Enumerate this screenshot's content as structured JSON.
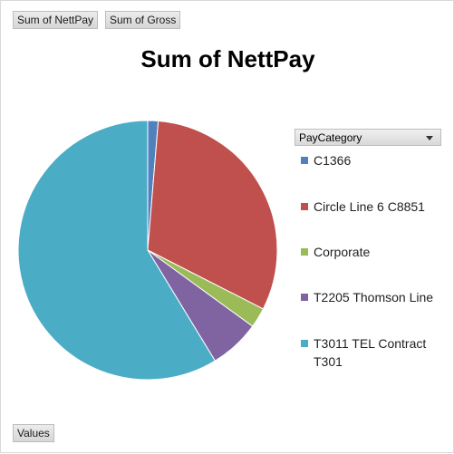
{
  "field_buttons": {
    "values_1": "Sum of NettPay",
    "values_2": "Sum of Gross",
    "values_area": "Values"
  },
  "legend_filter": {
    "label": "PayCategory",
    "icon": "dropdown-arrow-icon"
  },
  "chart_data": {
    "type": "pie",
    "title": "Sum of NettPay",
    "legend_position": "right",
    "categories": [
      "C1366",
      "Circle Line 6 C8851",
      "Corporate",
      "T2205 Thomson Line",
      "T3011 TEL Contract T301"
    ],
    "values": [
      1.3,
      31.2,
      2.5,
      6.3,
      58.7
    ],
    "colors": [
      "#4f81bd",
      "#c0504d",
      "#9bbb59",
      "#8064a2",
      "#4bacc6"
    ]
  }
}
